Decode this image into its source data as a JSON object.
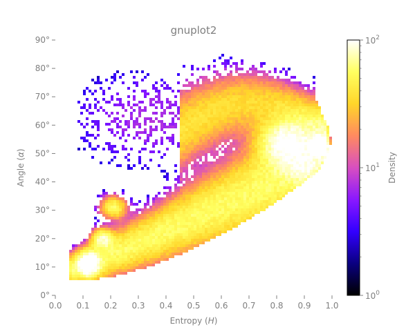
{
  "chart_data": {
    "type": "heatmap",
    "title": "gnuplot2",
    "xlabel_text": "Entropy (",
    "xlabel_var": "H",
    "xlabel_close": ")",
    "ylabel_text": "Angle (",
    "ylabel_var": "α",
    "ylabel_close": ")",
    "xlim": [
      0.0,
      1.0
    ],
    "ylim": [
      0,
      90
    ],
    "x_ticks": [
      "0.0",
      "0.1",
      "0.2",
      "0.3",
      "0.4",
      "0.5",
      "0.6",
      "0.7",
      "0.8",
      "0.9",
      "1.0"
    ],
    "y_ticks": [
      "0°",
      "10°",
      "20°",
      "30°",
      "40°",
      "50°",
      "60°",
      "70°",
      "80°",
      "90°"
    ],
    "colorbar": {
      "label": "Density",
      "scale": "log",
      "range": [
        1,
        100
      ],
      "ticks": [
        {
          "base": "10",
          "exp": "0"
        },
        {
          "base": "10",
          "exp": "1"
        },
        {
          "base": "10",
          "exp": "2"
        }
      ],
      "colormap": "gnuplot2",
      "colormap_stops": [
        "#000000",
        "#0a0080",
        "#3300ff",
        "#8a18ff",
        "#d84fc0",
        "#ff8a60",
        "#ffd62a",
        "#ffff60",
        "#ffffff"
      ]
    },
    "density_features": [
      {
        "name": "low-entropy lobe",
        "x": 0.12,
        "y": 12,
        "peak": 100
      },
      {
        "name": "low-entropy upper lobe",
        "x": 0.2,
        "y": 22,
        "peak": 60
      },
      {
        "name": "shoulder",
        "x": 0.22,
        "y": 31,
        "peak": 40
      },
      {
        "name": "main ridge",
        "x": 0.83,
        "y": 53,
        "peak": 90
      },
      {
        "name": "high-entropy tip",
        "x": 0.96,
        "y": 52,
        "peak": 100
      }
    ],
    "grid": false
  }
}
